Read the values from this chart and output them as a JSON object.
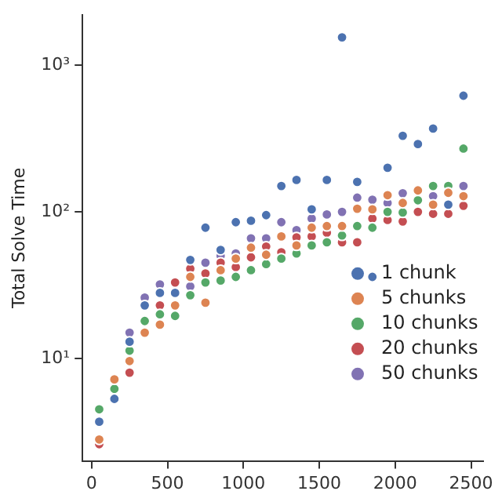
{
  "chart_data": {
    "type": "scatter",
    "ylabel": "Total Solve Time",
    "log": "y",
    "grid": false,
    "legend": "right",
    "marker": "circle",
    "xlim": [
      -60,
      2580
    ],
    "xticks": [
      0,
      500,
      1000,
      1500,
      2000,
      2500
    ],
    "ylim": [
      2,
      2200
    ],
    "yticks": [
      {
        "value": 10,
        "label": "10¹"
      },
      {
        "value": 100,
        "label": "10²"
      },
      {
        "value": 1000,
        "label": "10³"
      }
    ],
    "x": [
      50,
      150,
      250,
      350,
      450,
      550,
      650,
      750,
      850,
      950,
      1050,
      1150,
      1250,
      1350,
      1450,
      1550,
      1650,
      1750,
      1850,
      1950,
      2050,
      2150,
      2250,
      2350,
      2450
    ],
    "series": [
      {
        "name": "1 chunk",
        "color": "#4c72b0",
        "values": [
          3.7,
          5.3,
          13,
          23,
          28,
          28,
          47,
          78,
          55,
          85,
          87,
          95,
          150,
          165,
          104,
          165,
          1550,
          160,
          36,
          200,
          330,
          290,
          370,
          112,
          620
        ]
      },
      {
        "name": "5 chunks",
        "color": "#dd8452",
        "values": [
          2.8,
          7.2,
          9.6,
          15,
          17,
          23,
          36,
          24,
          40,
          48,
          57,
          51,
          68,
          59,
          78,
          80,
          80,
          105,
          104,
          130,
          115,
          140,
          112,
          135,
          128
        ]
      },
      {
        "name": "10 chunks",
        "color": "#55a868",
        "values": [
          4.5,
          6.2,
          11.3,
          18,
          20,
          19.5,
          27,
          33,
          34,
          36,
          40,
          44,
          48,
          52,
          59,
          62,
          69,
          80,
          78,
          100,
          99,
          120,
          150,
          150,
          270
        ]
      },
      {
        "name": "20 chunks",
        "color": "#c44e52",
        "values": [
          2.6,
          null,
          8,
          null,
          23,
          33,
          41,
          38,
          45,
          42,
          49,
          58,
          53,
          67,
          68,
          72,
          62,
          62,
          90,
          88,
          86,
          100,
          97,
          97,
          110
        ]
      },
      {
        "name": "50 chunks",
        "color": "#8172b3",
        "values": [
          null,
          null,
          15,
          26,
          32,
          null,
          31,
          45,
          50,
          52,
          66,
          66,
          85,
          75,
          90,
          96,
          100,
          125,
          121,
          115,
          134,
          null,
          128,
          null,
          150
        ]
      }
    ]
  }
}
